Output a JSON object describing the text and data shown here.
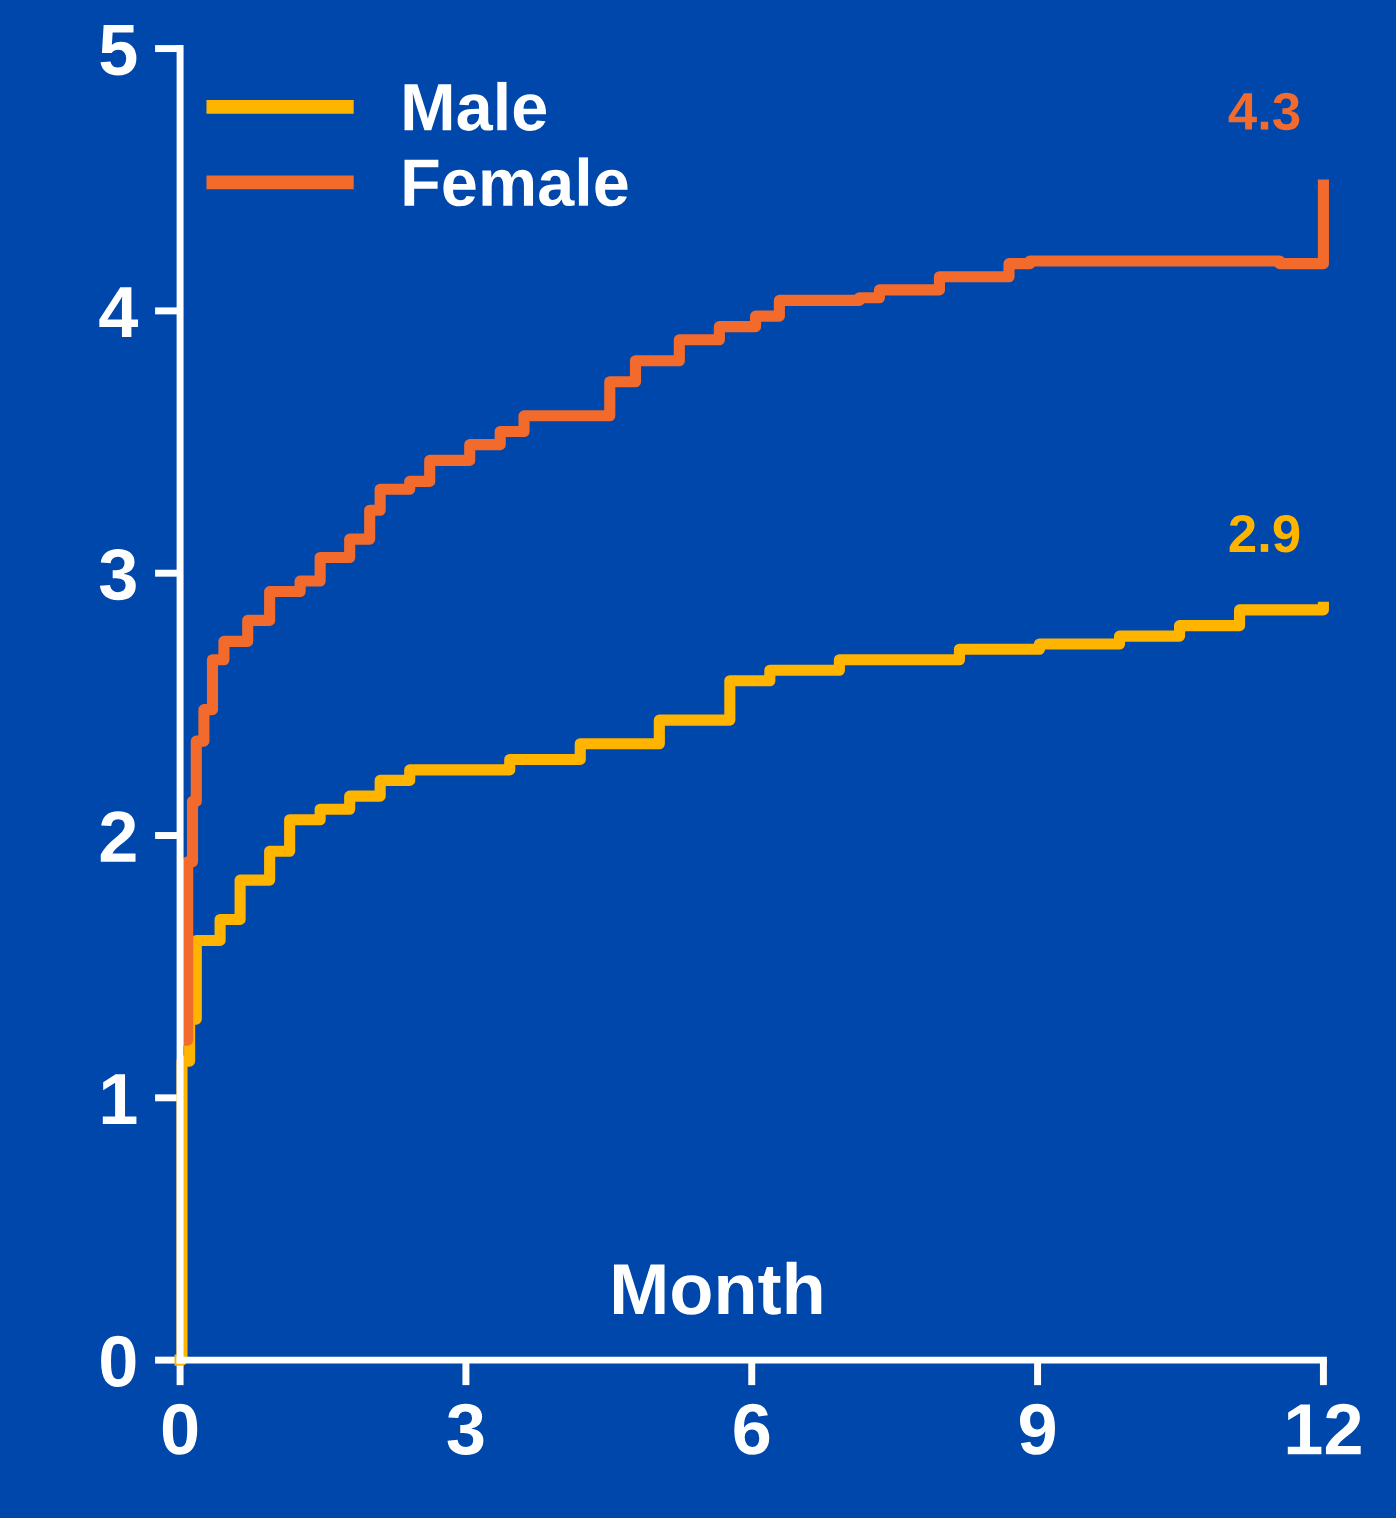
{
  "chart_data": {
    "type": "step",
    "xlabel": "Month",
    "series": [
      {
        "name": "Male",
        "color": "#ffb400",
        "x": [
          0,
          0.02,
          0.1,
          0.17,
          0.42,
          0.63,
          0.94,
          1.15,
          1.47,
          1.78,
          2.1,
          2.41,
          3.46,
          4.2,
          5.03,
          5.77,
          6.19,
          6.92,
          8.18,
          9.02,
          9.86,
          10.49,
          11.12,
          12
        ],
        "values": [
          0,
          1.14,
          1.3,
          1.6,
          1.68,
          1.83,
          1.94,
          2.06,
          2.1,
          2.15,
          2.21,
          2.25,
          2.29,
          2.35,
          2.44,
          2.59,
          2.63,
          2.67,
          2.71,
          2.73,
          2.76,
          2.8,
          2.86,
          2.87
        ]
      },
      {
        "name": "Female",
        "color": "#f26b2c",
        "x": [
          0.04,
          0.08,
          0.13,
          0.17,
          0.25,
          0.34,
          0.46,
          0.71,
          0.94,
          1.26,
          1.47,
          1.78,
          1.99,
          2.1,
          2.41,
          2.62,
          3.04,
          3.36,
          3.61,
          4.51,
          4.78,
          5.24,
          5.66,
          6.04,
          6.29,
          7.13,
          7.34,
          7.97,
          8.7,
          8.92,
          9.34,
          9.55,
          11.54,
          12
        ],
        "values": [
          1.22,
          1.9,
          2.13,
          2.36,
          2.48,
          2.67,
          2.74,
          2.82,
          2.93,
          2.97,
          3.06,
          3.13,
          3.24,
          3.32,
          3.35,
          3.43,
          3.49,
          3.54,
          3.6,
          3.73,
          3.81,
          3.89,
          3.94,
          3.98,
          4.04,
          4.05,
          4.08,
          4.13,
          4.18,
          4.19,
          4.19,
          4.19,
          4.18,
          4.48
        ]
      }
    ],
    "annotations": [
      {
        "text": "4.3",
        "x": 12,
        "y": 4.48
      },
      {
        "text": "2.9",
        "x": 12,
        "y": 2.87
      }
    ],
    "xlim": [
      0,
      12
    ],
    "ylim": [
      0,
      5
    ],
    "xticks": [
      0,
      3,
      6,
      9,
      12
    ],
    "yticks": [
      0,
      1,
      2,
      3,
      4,
      5
    ],
    "grid": false,
    "legend": "top left",
    "line_style": "solid",
    "marker": "none"
  }
}
